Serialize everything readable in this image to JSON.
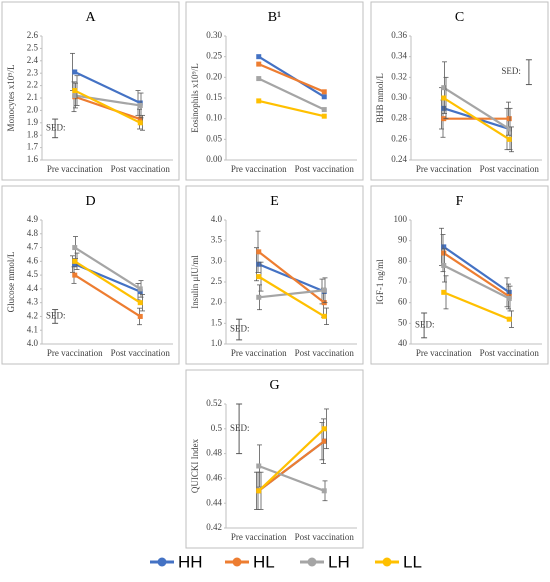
{
  "chart_data": [
    {
      "type": "line",
      "title": "A",
      "y_label": "Monocytes x10⁹/L",
      "categories": [
        "Pre vaccination",
        "Post vaccination"
      ],
      "ylim": [
        1.6,
        2.6
      ],
      "yticks": [
        1.6,
        1.7,
        1.8,
        1.9,
        {
          "value": 2,
          "label": "2.0"
        },
        2.1,
        2.2,
        2.3,
        2.4,
        2.5,
        2.6
      ],
      "series": [
        {
          "values": [
            2.31,
            2.06
          ],
          "errors": [
            0.15,
            0.1
          ]
        },
        {
          "values": [
            2.11,
            1.93
          ],
          "errors": [
            0.12,
            0.08
          ]
        },
        {
          "values": [
            2.12,
            2.04
          ],
          "errors": [
            0.1,
            0.1
          ]
        },
        {
          "values": [
            2.16,
            1.9
          ],
          "errors": [
            0.12,
            0.06
          ]
        }
      ],
      "sed_label": "SED:",
      "sed_range": [
        1.78,
        1.93
      ]
    },
    {
      "type": "line",
      "title": "B¹",
      "y_label": "Eosinophils x10⁹/L",
      "categories": [
        "Pre vaccination",
        "Post vaccination"
      ],
      "ylim": [
        0,
        0.3
      ],
      "yticks": [
        {
          "value": 0,
          "label": "0.00"
        },
        0.05,
        {
          "value": 0.1,
          "label": "0.10"
        },
        0.15,
        {
          "value": 0.2,
          "label": "0.20"
        },
        0.25,
        {
          "value": 0.3,
          "label": "0.30"
        }
      ],
      "series": [
        {
          "values": [
            0.25,
            0.153
          ]
        },
        {
          "values": [
            0.232,
            0.165
          ]
        },
        {
          "values": [
            0.197,
            0.122
          ]
        },
        {
          "values": [
            0.143,
            0.106
          ]
        }
      ]
    },
    {
      "type": "line",
      "title": "C",
      "y_label": "BHB mmol/L",
      "categories": [
        "Pre vaccination",
        "Post vaccination"
      ],
      "ylim": [
        0.24,
        0.36
      ],
      "yticks": [
        0.24,
        0.26,
        0.28,
        {
          "value": 0.3,
          "label": "0.30"
        },
        0.32,
        0.34,
        0.36
      ],
      "series": [
        {
          "values": [
            0.29,
            0.27
          ],
          "errors": [
            0.02,
            0.02
          ]
        },
        {
          "values": [
            0.28,
            0.28
          ],
          "errors": [
            0.018,
            0.016
          ]
        },
        {
          "values": [
            0.31,
            0.27
          ],
          "errors": [
            0.025,
            0.02
          ]
        },
        {
          "values": [
            0.3,
            0.26
          ],
          "errors": [
            0.02,
            0.012
          ]
        }
      ],
      "sed_label": "SED:",
      "sed_range": [
        0.313,
        0.337
      ]
    },
    {
      "type": "line",
      "title": "D",
      "y_label": "Glucose mmol/L",
      "categories": [
        "Pre vaccination",
        "Post vaccination"
      ],
      "ylim": [
        4,
        4.9
      ],
      "yticks": [
        {
          "value": 4,
          "label": "4.0"
        },
        4.1,
        4.2,
        4.3,
        4.4,
        4.5,
        4.6,
        4.7,
        4.8,
        4.9
      ],
      "series": [
        {
          "values": [
            4.58,
            4.38
          ],
          "errors": [
            0.06,
            0.06
          ]
        },
        {
          "values": [
            4.5,
            4.2
          ],
          "errors": [
            0.06,
            0.06
          ]
        },
        {
          "values": [
            4.7,
            4.4
          ],
          "errors": [
            0.08,
            0.06
          ]
        },
        {
          "values": [
            4.6,
            4.3
          ],
          "errors": [
            0.06,
            0.06
          ]
        }
      ],
      "sed_label": "SED:",
      "sed_range": [
        4.15,
        4.25
      ]
    },
    {
      "type": "line",
      "title": "E",
      "y_label": "Insulin μIU/ml",
      "categories": [
        "Pre vaccination",
        "Post vaccination"
      ],
      "ylim": [
        1,
        4
      ],
      "yticks": [
        {
          "value": 1,
          "label": "1.0"
        },
        1.5,
        {
          "value": 2,
          "label": "2.0"
        },
        2.5,
        {
          "value": 3,
          "label": "3.0"
        },
        3.5,
        {
          "value": 4,
          "label": "4.0"
        }
      ],
      "series": [
        {
          "values": [
            2.93,
            2.27
          ],
          "errors": [
            0.4,
            0.3
          ]
        },
        {
          "values": [
            3.23,
            2.0
          ],
          "errors": [
            0.5,
            0.35
          ]
        },
        {
          "values": [
            2.13,
            2.3
          ],
          "errors": [
            0.3,
            0.3
          ]
        },
        {
          "values": [
            2.63,
            1.67
          ],
          "errors": [
            0.35,
            0.2
          ]
        }
      ],
      "sed_label": "SED:",
      "sed_range": [
        1.1,
        1.6
      ]
    },
    {
      "type": "line",
      "title": "F",
      "y_label": "IGF-1 ng/ml",
      "categories": [
        "Pre vaccination",
        "Post vaccination"
      ],
      "ylim": [
        40,
        100
      ],
      "yticks": [
        40,
        50,
        60,
        70,
        80,
        90,
        100
      ],
      "series": [
        {
          "values": [
            87,
            65
          ],
          "errors": [
            9,
            7
          ]
        },
        {
          "values": [
            84,
            63
          ],
          "errors": [
            9,
            6
          ]
        },
        {
          "values": [
            78,
            62
          ],
          "errors": [
            8,
            6
          ]
        },
        {
          "values": [
            65,
            52
          ],
          "errors": [
            8,
            4
          ]
        }
      ],
      "sed_label": "SED:",
      "sed_range": [
        43,
        55
      ]
    },
    {
      "type": "line",
      "title": "G",
      "y_label": "QUICKI Index",
      "categories": [
        "Pre vaccination",
        "Post vaccination"
      ],
      "ylim": [
        0.42,
        0.52
      ],
      "yticks": [
        0.42,
        0.44,
        0.46,
        0.48,
        0.5,
        0.52
      ],
      "series": [
        {
          "values": [
            0.45,
            0.49
          ],
          "errors": [
            0.015,
            0.015
          ]
        },
        {
          "values": [
            0.45,
            0.49
          ],
          "errors": [
            0.015,
            0.018
          ]
        },
        {
          "values": [
            0.47,
            0.45
          ],
          "errors": [
            0.017,
            0.008
          ]
        },
        {
          "values": [
            0.45,
            0.5
          ],
          "errors": [
            0.015,
            0.016
          ]
        }
      ],
      "sed_label": "SED:",
      "sed_range": [
        0.48,
        0.52
      ]
    }
  ],
  "legend": {
    "names": [
      "HH",
      "HL",
      "LH",
      "LL"
    ],
    "colors": [
      "#4472c4",
      "#ed7d31",
      "#a5a5a5",
      "#ffc000"
    ]
  }
}
